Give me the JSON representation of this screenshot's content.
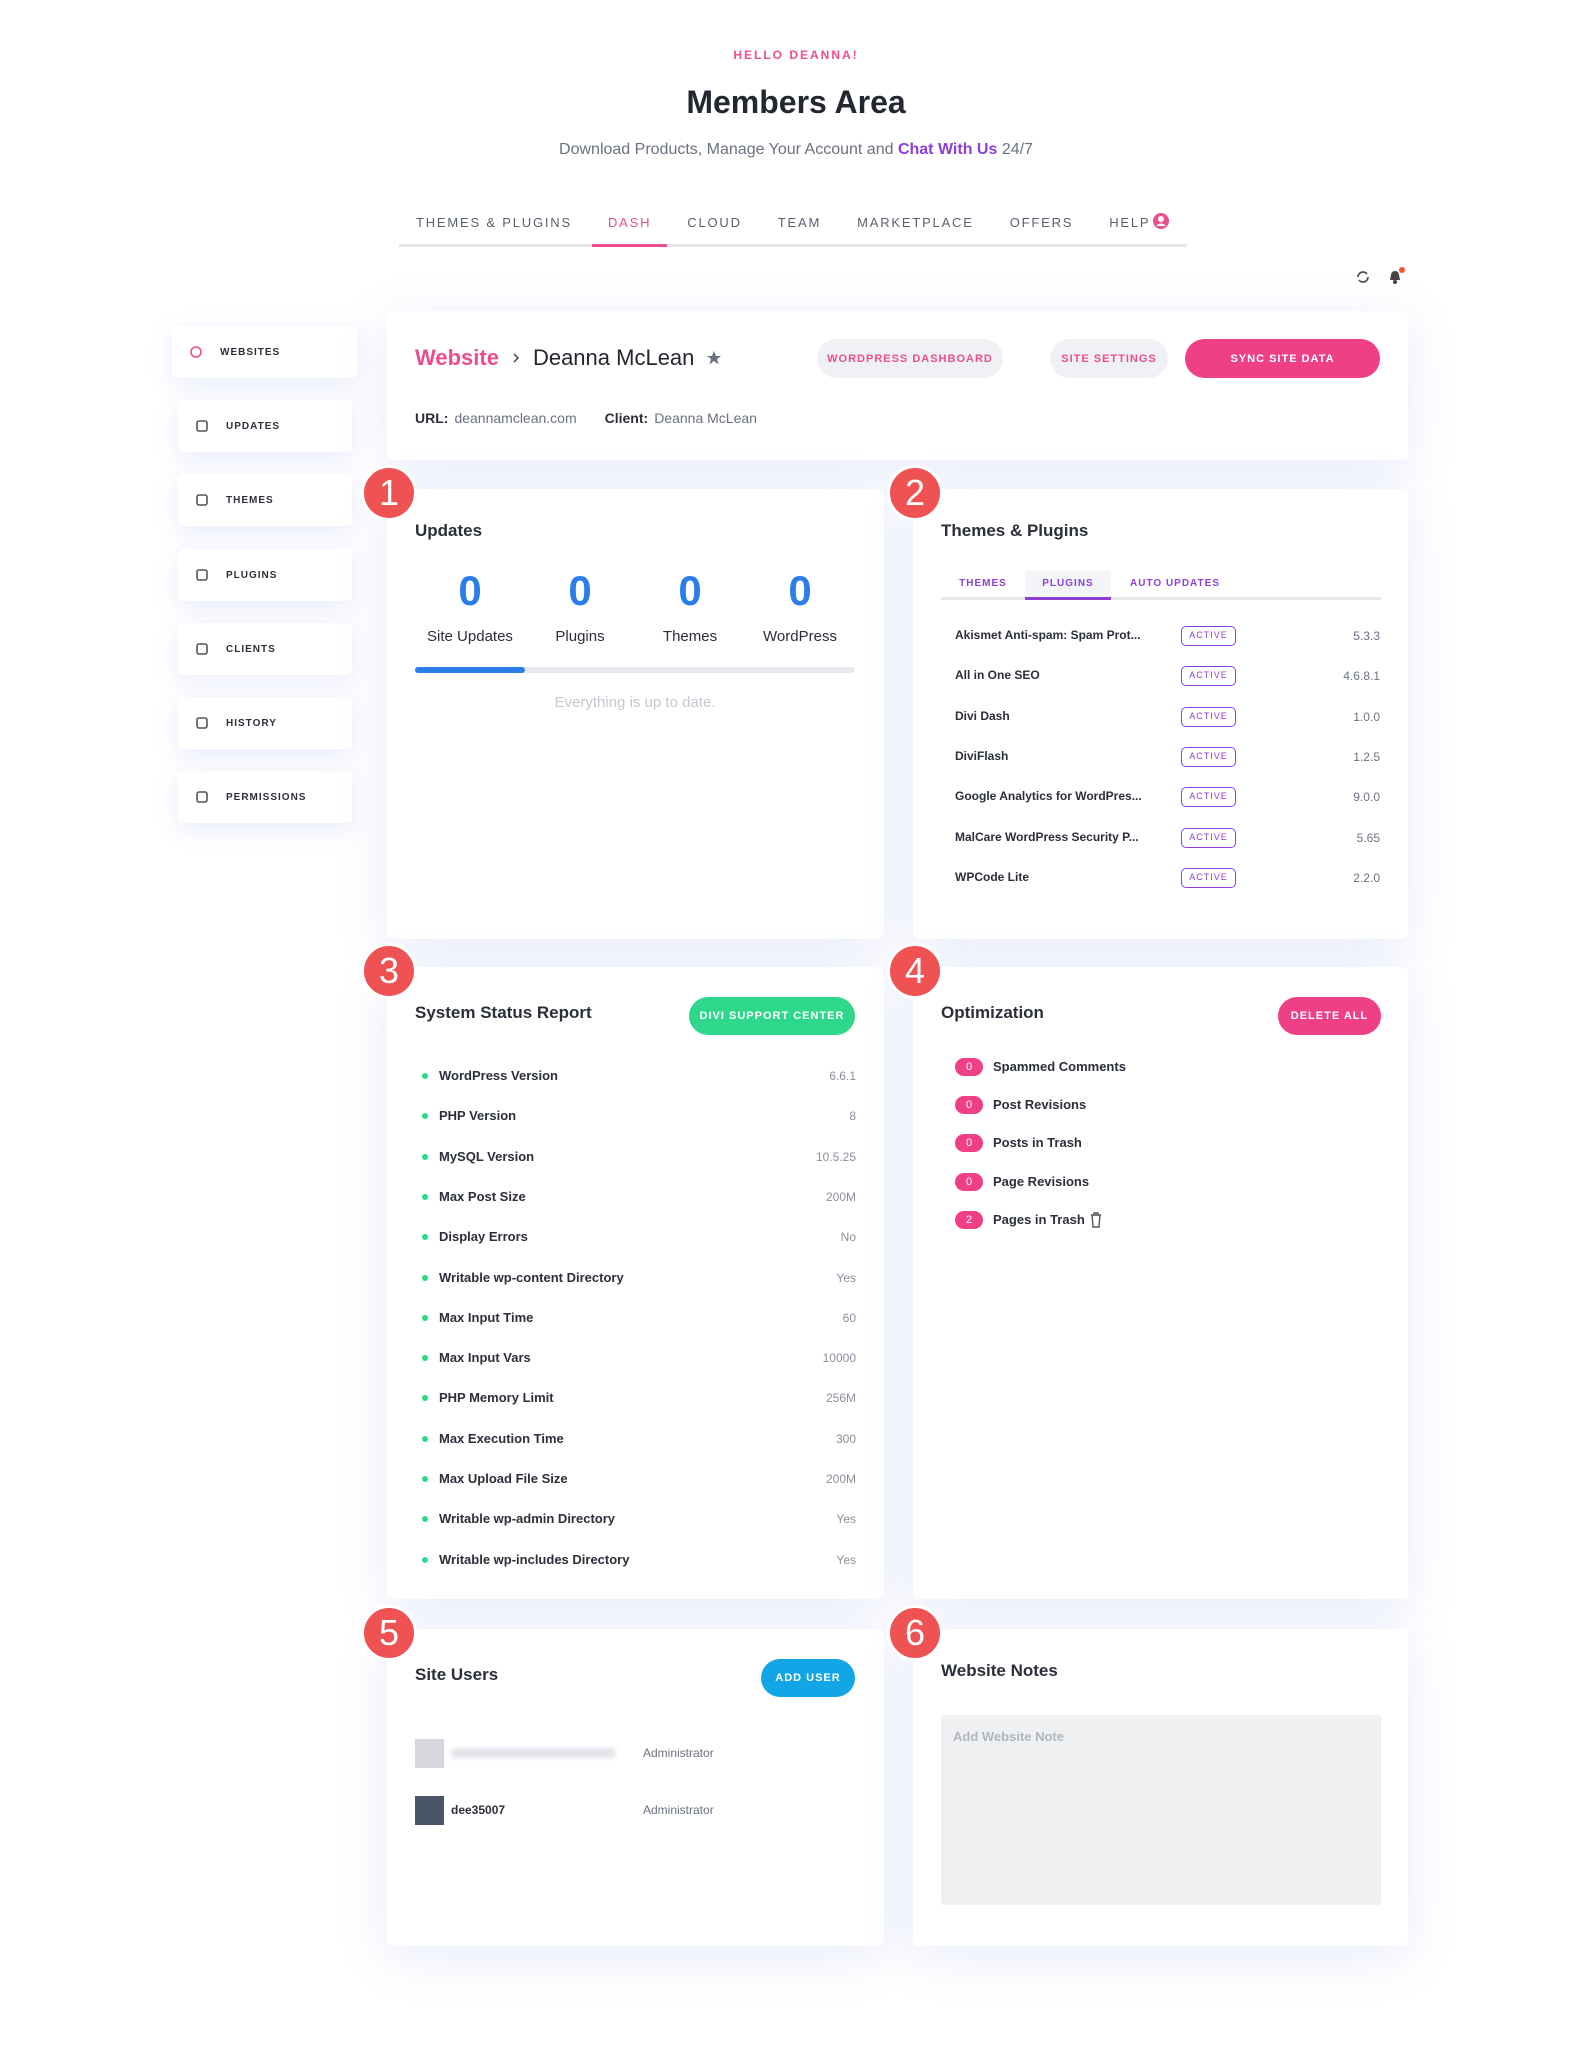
{
  "header": {
    "greeting": "HELLO DEANNA!",
    "title": "Members Area",
    "subtitle_pre": "Download Products, Manage Your Account and",
    "subtitle_link": "Chat With Us",
    "subtitle_post": "24/7"
  },
  "nav": {
    "tabs": [
      "THEMES & PLUGINS",
      "DASH",
      "CLOUD",
      "TEAM",
      "MARKETPLACE",
      "OFFERS",
      "HELP"
    ],
    "active": 1
  },
  "sidebar": {
    "items": [
      "WEBSITES",
      "UPDATES",
      "THEMES",
      "PLUGINS",
      "CLIENTS",
      "HISTORY",
      "PERMISSIONS"
    ],
    "active": 0
  },
  "site": {
    "breadcrumb": "Website",
    "name": "Deanna McLean",
    "buttons": [
      "WORDPRESS DASHBOARD",
      "SITE SETTINGS",
      "SYNC SITE DATA"
    ],
    "url_label": "URL:",
    "url": "deannamclean.com",
    "client_label": "Client:",
    "client": "Deanna McLean"
  },
  "updates": {
    "badge": "1",
    "title": "Updates",
    "stats": [
      {
        "value": 0,
        "label": "Site Updates"
      },
      {
        "value": 0,
        "label": "Plugins"
      },
      {
        "value": 0,
        "label": "Themes"
      },
      {
        "value": 0,
        "label": "WordPress"
      }
    ],
    "message": "Everything is up to date."
  },
  "themes_plugins": {
    "badge": "2",
    "title": "Themes & Plugins",
    "tabs": [
      "THEMES",
      "PLUGINS",
      "AUTO UPDATES"
    ],
    "active_tab": 1,
    "rows": [
      {
        "name": "Akismet Anti-spam: Spam Prot...",
        "status": "ACTIVE",
        "version": "5.3.3"
      },
      {
        "name": "All in One SEO",
        "status": "ACTIVE",
        "version": "4.6.8.1"
      },
      {
        "name": "Divi Dash",
        "status": "ACTIVE",
        "version": "1.0.0"
      },
      {
        "name": "DiviFlash",
        "status": "ACTIVE",
        "version": "1.2.5"
      },
      {
        "name": "Google Analytics for WordPres...",
        "status": "ACTIVE",
        "version": "9.0.0"
      },
      {
        "name": "MalCare WordPress Security P...",
        "status": "ACTIVE",
        "version": "5.65"
      },
      {
        "name": "WPCode Lite",
        "status": "ACTIVE",
        "version": "2.2.0"
      }
    ]
  },
  "system_status": {
    "badge": "3",
    "title": "System Status Report",
    "button": "DIVI SUPPORT CENTER",
    "rows": [
      [
        "WordPress Version",
        "6.6.1"
      ],
      [
        "PHP Version",
        "8"
      ],
      [
        "MySQL Version",
        "10.5.25"
      ],
      [
        "Max Post Size",
        "200M"
      ],
      [
        "Display Errors",
        "No"
      ],
      [
        "Writable wp-content Directory",
        "Yes"
      ],
      [
        "Max Input Time",
        "60"
      ],
      [
        "Max Input Vars",
        "10000"
      ],
      [
        "PHP Memory Limit",
        "256M"
      ],
      [
        "Max Execution Time",
        "300"
      ],
      [
        "Max Upload File Size",
        "200M"
      ],
      [
        "Writable wp-admin Directory",
        "Yes"
      ],
      [
        "Writable wp-includes Directory",
        "Yes"
      ]
    ]
  },
  "optimization": {
    "badge": "4",
    "title": "Optimization",
    "button": "DELETE ALL",
    "items": [
      {
        "count": 0,
        "label": "Spammed Comments"
      },
      {
        "count": 0,
        "label": "Post Revisions"
      },
      {
        "count": 0,
        "label": "Posts in Trash"
      },
      {
        "count": 0,
        "label": "Page Revisions"
      },
      {
        "count": 2,
        "label": "Pages in Trash"
      }
    ]
  },
  "site_users": {
    "badge": "5",
    "title": "Site Users",
    "button": "ADD USER",
    "users": [
      {
        "role": "Administrator"
      },
      {
        "name": "dee35007",
        "role": "Administrator"
      }
    ]
  },
  "notes": {
    "badge": "6",
    "title": "Website Notes",
    "placeholder": "Add Website Note"
  }
}
